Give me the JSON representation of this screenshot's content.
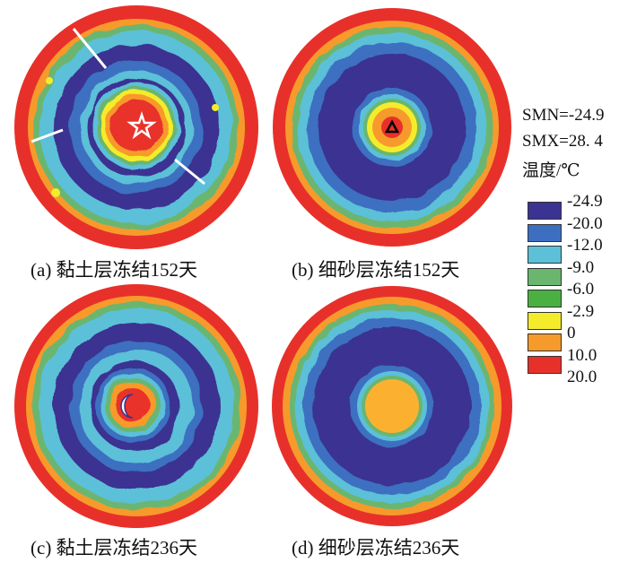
{
  "captions": {
    "a": "(a) 黏土层冻结152天",
    "b": "(b) 细砂层冻结152天",
    "c": "(c) 黏土层冻结236天",
    "d": "(d) 细砂层冻结236天"
  },
  "legend": {
    "smn": "SMN=-24.9",
    "smx": "SMX=28. 4",
    "title": "温度/℃",
    "levels": [
      {
        "label": "-24.9",
        "color": "#3b3391"
      },
      {
        "label": "-20.0",
        "color": "#3d6fc0"
      },
      {
        "label": "-12.0",
        "color": "#5cc0d8"
      },
      {
        "label": "-9.0",
        "color": "#6ab66f"
      },
      {
        "label": "-6.0",
        "color": "#4bb042"
      },
      {
        "label": "-2.9",
        "color": "#f4ec2b"
      },
      {
        "label": "0",
        "color": "#f79a2c"
      },
      {
        "label": "10.0",
        "color": "#e8302a"
      },
      {
        "label": "20.0",
        "color": "#e8302a"
      }
    ]
  },
  "zone_colors": {
    "red": "#e8302a",
    "orange": "#f79a2c",
    "yellow": "#f4ec2b",
    "green": "#4bb042",
    "lightgreen": "#6ab66f",
    "cyan": "#5cc0d8",
    "blue": "#3d6fc0",
    "navy": "#3b3391",
    "lightorange": "#fbb12f"
  },
  "markers": {
    "a": "star-icon",
    "b": "triangle-icon",
    "c": "crescent-icon"
  }
}
